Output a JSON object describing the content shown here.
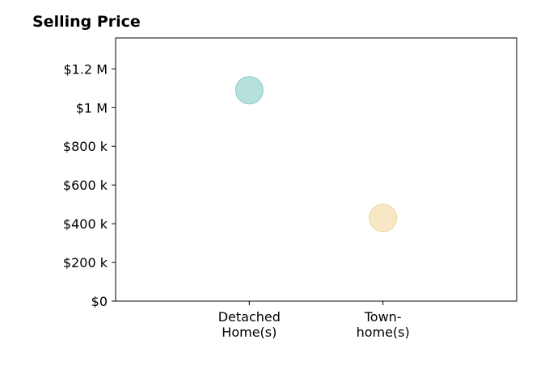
{
  "chart_data": {
    "type": "scatter",
    "title": "Selling Price",
    "xlabel": "",
    "ylabel": "",
    "categories": [
      [
        "Detached",
        "Home(s)"
      ],
      [
        "Town-",
        "home(s)"
      ]
    ],
    "values": [
      1090000,
      430000
    ],
    "point_colors": [
      "#a9dad6",
      "#f7e3ba"
    ],
    "edge_colors": [
      "#8fcac4",
      "#ecd49e"
    ],
    "ylim": [
      0,
      1360000
    ],
    "yticks": [
      {
        "value": 0,
        "label": "$0"
      },
      {
        "value": 200000,
        "label": "$200 k"
      },
      {
        "value": 400000,
        "label": "$400 k"
      },
      {
        "value": 600000,
        "label": "$600 k"
      },
      {
        "value": 800000,
        "label": "$800 k"
      },
      {
        "value": 1000000,
        "label": "$1 M"
      },
      {
        "value": 1200000,
        "label": "$1.2 M"
      }
    ],
    "grid": false,
    "legend": "none"
  }
}
